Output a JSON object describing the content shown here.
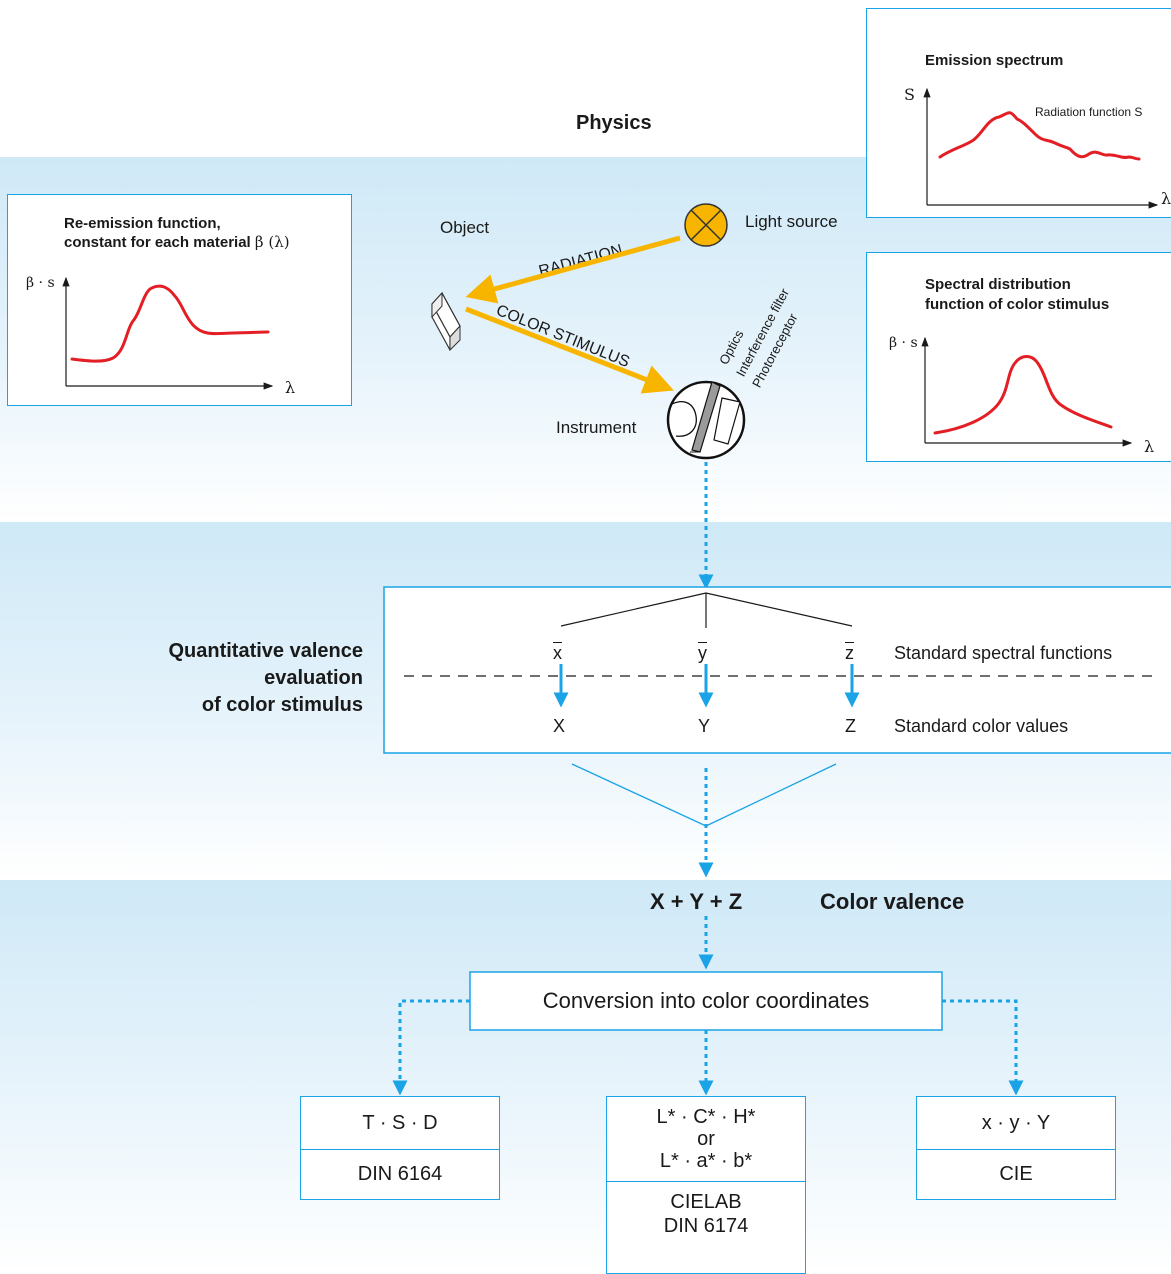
{
  "physics_label": "Physics",
  "emission_box": {
    "title": "Emission spectrum",
    "y_axis": "S",
    "x_axis": "λ",
    "curve_label": "Radiation function S"
  },
  "reemission_box": {
    "title_line1": "Re-emission function,",
    "title_line2": "constant for each material",
    "title_symbol": "β (λ)",
    "y_axis": "β · s",
    "x_axis": "λ"
  },
  "spectral_box": {
    "title_line1": "Spectral distribution",
    "title_line2": "function of color stimulus",
    "y_axis": "β · s",
    "x_axis": "λ"
  },
  "scene": {
    "object_label": "Object",
    "light_source_label": "Light source",
    "radiation_label": "RADIATION",
    "color_stimulus_label": "COLOR STIMULUS",
    "instrument_label": "Instrument",
    "optics_label": "Optics",
    "filter_label": "Interference filter",
    "photoreceptor_label": "Photoreceptor"
  },
  "valence_label": {
    "line1": "Quantitative valence",
    "line2": "evaluation",
    "line3": "of color stimulus"
  },
  "evaluation_box": {
    "spectral_functions": [
      "x",
      "y",
      "z"
    ],
    "spectral_functions_label": "Standard spectral functions",
    "color_values": [
      "X",
      "Y",
      "Z"
    ],
    "color_values_label": "Standard color values"
  },
  "sum_label": "X + Y + Z",
  "color_valence_label": "Color valence",
  "conversion_label": "Conversion into color coordinates",
  "outputs": {
    "tsd": {
      "top": "T · S · D",
      "bottom": "DIN 6164"
    },
    "lab": {
      "line1": "L* · C* · H*",
      "line2": "or",
      "line3": "L* · a* · b*",
      "bottom1": "CIELAB",
      "bottom2": "DIN 6174"
    },
    "cie": {
      "top": "x · y · Y",
      "bottom": "CIE"
    }
  },
  "colors": {
    "accent_blue": "#1aa3e6",
    "curve_red": "#e31e24",
    "ray_yellow": "#f7b500",
    "band_blue": "#cfe9f7"
  }
}
